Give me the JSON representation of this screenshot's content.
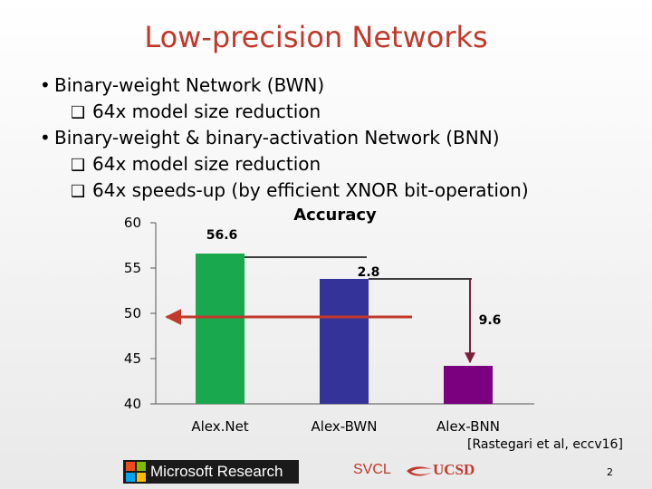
{
  "slide": {
    "title": "Low-precision Networks",
    "bullets": [
      {
        "text": "Binary-weight Network (BWN)",
        "subs": [
          "64x model size reduction"
        ]
      },
      {
        "text": "Binary-weight & binary-activation Network (BNN)",
        "subs": [
          "64x model size reduction",
          "64x speeds-up (by efficient XNOR bit-operation)"
        ]
      }
    ],
    "bullet_glyph": "•",
    "sub_glyph": "❑",
    "reference": "[Rastegari et al, eccv16]",
    "logo_left": "Microsoft Research",
    "logo_lab": "SVCL",
    "logo_ucsd": "UCSD",
    "page_number": "2"
  },
  "chart_data": {
    "type": "bar",
    "title": "Accuracy",
    "categories": [
      "Alex.Net",
      "Alex-BWN",
      "Alex-BNN"
    ],
    "values": [
      56.6,
      53.8,
      44.2
    ],
    "colors": [
      "#1aa84f",
      "#333399",
      "#7b0080"
    ],
    "ylim": [
      40,
      60
    ],
    "yticks": [
      "60",
      "55",
      "50",
      "45",
      "40"
    ],
    "ytick_values": [
      60,
      55,
      50,
      45,
      40
    ],
    "annotations": [
      "56.6",
      "2.8",
      "9.6"
    ],
    "grid": false
  }
}
